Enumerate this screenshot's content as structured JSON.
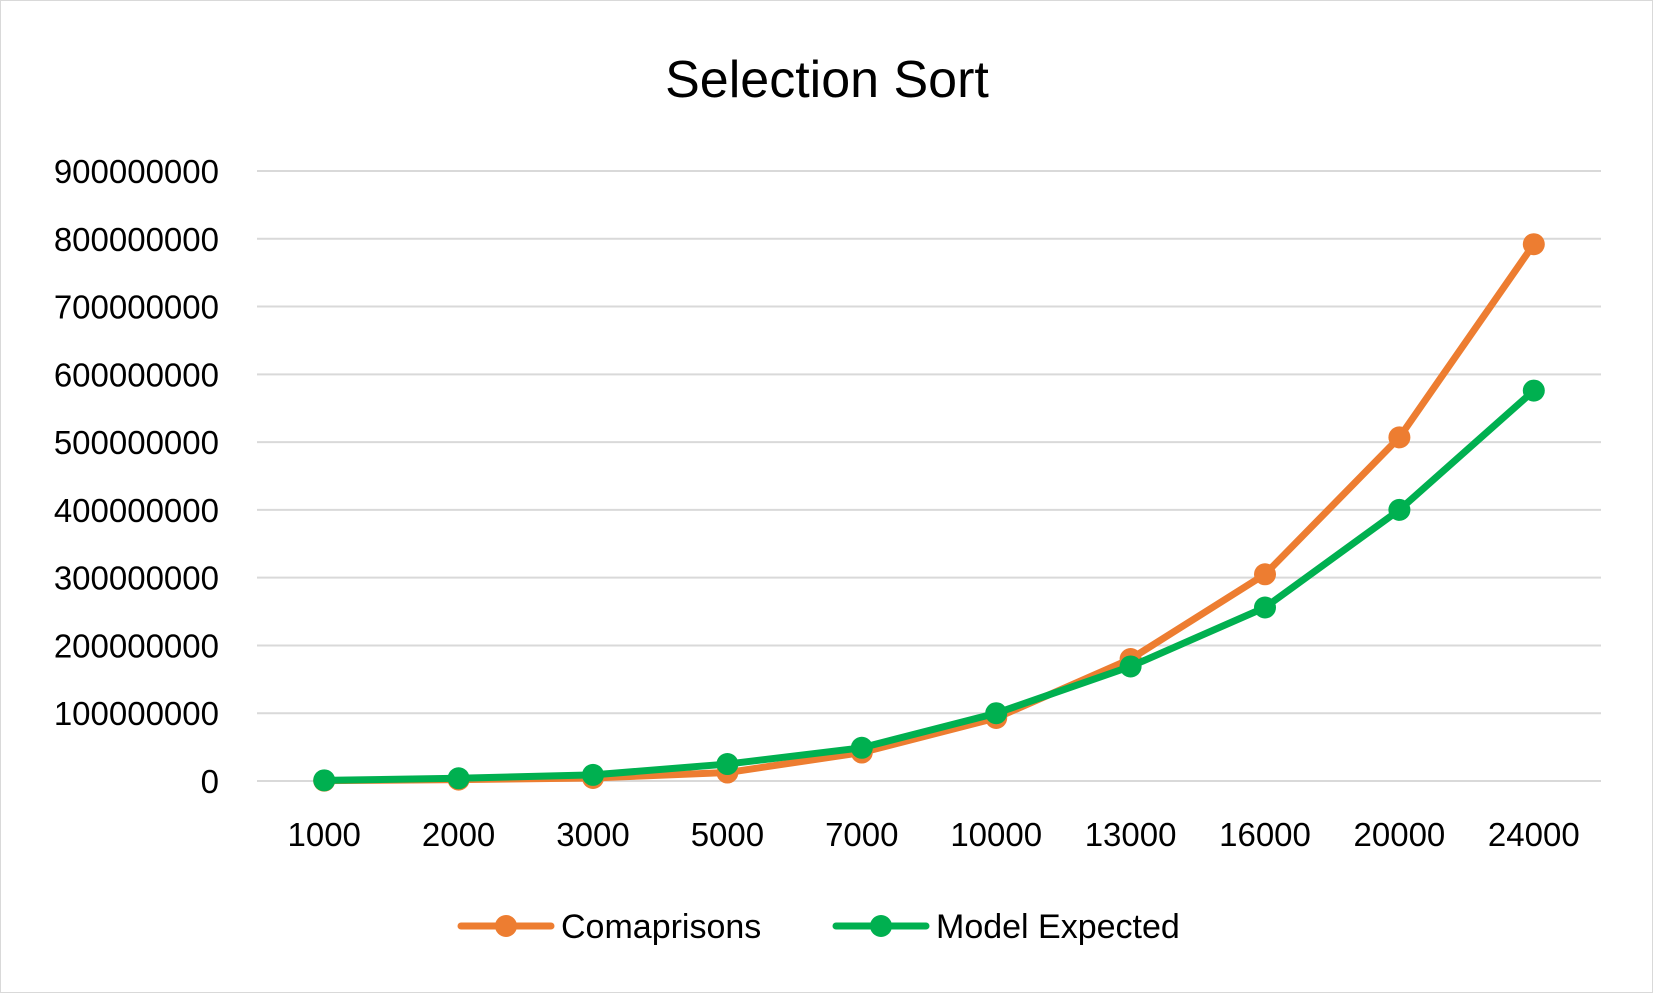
{
  "chart_data": {
    "type": "line",
    "title": "Selection Sort",
    "xlabel": "",
    "ylabel": "",
    "categories": [
      "1000",
      "2000",
      "3000",
      "5000",
      "7000",
      "10000",
      "13000",
      "16000",
      "20000",
      "24000"
    ],
    "series": [
      {
        "name": "Comaprisons",
        "color": "#ED7D31",
        "values": [
          500000,
          2000000,
          4500000,
          12500000,
          42000000,
          93000000,
          180000000,
          305000000,
          507000000,
          792000000
        ]
      },
      {
        "name": "Model Expected",
        "color": "#00B050",
        "values": [
          1000000,
          4000000,
          9000000,
          25000000,
          49000000,
          100000000,
          169000000,
          256000000,
          400000000,
          576000000
        ]
      }
    ],
    "yticks": [
      "0",
      "100000000",
      "200000000",
      "300000000",
      "400000000",
      "500000000",
      "600000000",
      "700000000",
      "800000000",
      "900000000"
    ],
    "ylim": [
      0,
      900000000
    ],
    "grid": true,
    "legend": "bottom"
  }
}
